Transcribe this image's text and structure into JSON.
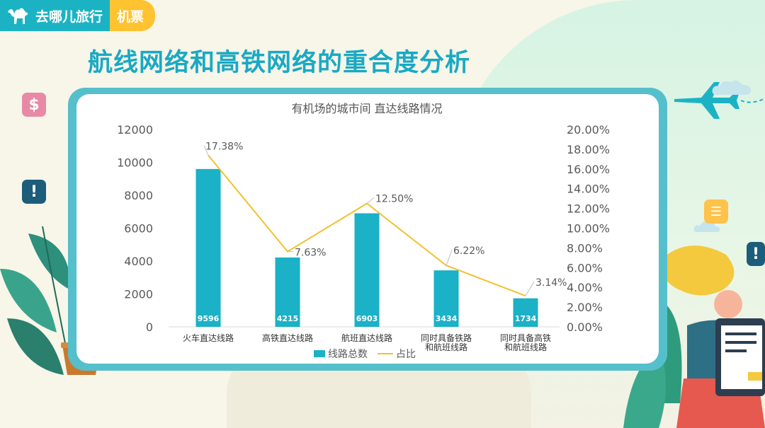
{
  "brand": {
    "name": "去哪儿旅行",
    "tag": "机票"
  },
  "page_title": "航线网络和高铁网络的重合度分析",
  "chart_data": {
    "type": "bar",
    "title": "有机场的城市间 直达线路情况",
    "categories": [
      [
        "火车直达线路"
      ],
      [
        "高铁直达线路"
      ],
      [
        "航班直达线路"
      ],
      [
        "同时具备铁路",
        "和航班线路"
      ],
      [
        "同时具备高铁",
        "和航班线路"
      ]
    ],
    "series": [
      {
        "name": "线路总数",
        "type": "bar",
        "axis": "left",
        "values": [
          9596,
          4215,
          6903,
          3434,
          1734
        ],
        "color": "#1bb1c6"
      },
      {
        "name": "占比",
        "type": "line",
        "axis": "right",
        "values": [
          17.38,
          7.63,
          12.5,
          6.22,
          3.14
        ],
        "labels": [
          "17.38%",
          "7.63%",
          "12.50%",
          "6.22%",
          "3.14%"
        ],
        "color": "#f2c12e"
      }
    ],
    "ylim_left": [
      0,
      12000
    ],
    "yticks_left": [
      "0",
      "2000",
      "4000",
      "6000",
      "8000",
      "10000",
      "12000"
    ],
    "ylim_right": [
      0,
      20
    ],
    "yticks_right": [
      "0.00%",
      "2.00%",
      "4.00%",
      "6.00%",
      "8.00%",
      "10.00%",
      "12.00%",
      "14.00%",
      "16.00%",
      "18.00%",
      "20.00%"
    ],
    "legend_position": "bottom",
    "grid": false
  },
  "decorations": {
    "dollar_badge": "$",
    "alert_badge": "!",
    "colors": {
      "accent": "#1aa9c4",
      "bar": "#1bb1c6",
      "line": "#f2c12e",
      "frame": "#55bfcc"
    }
  }
}
